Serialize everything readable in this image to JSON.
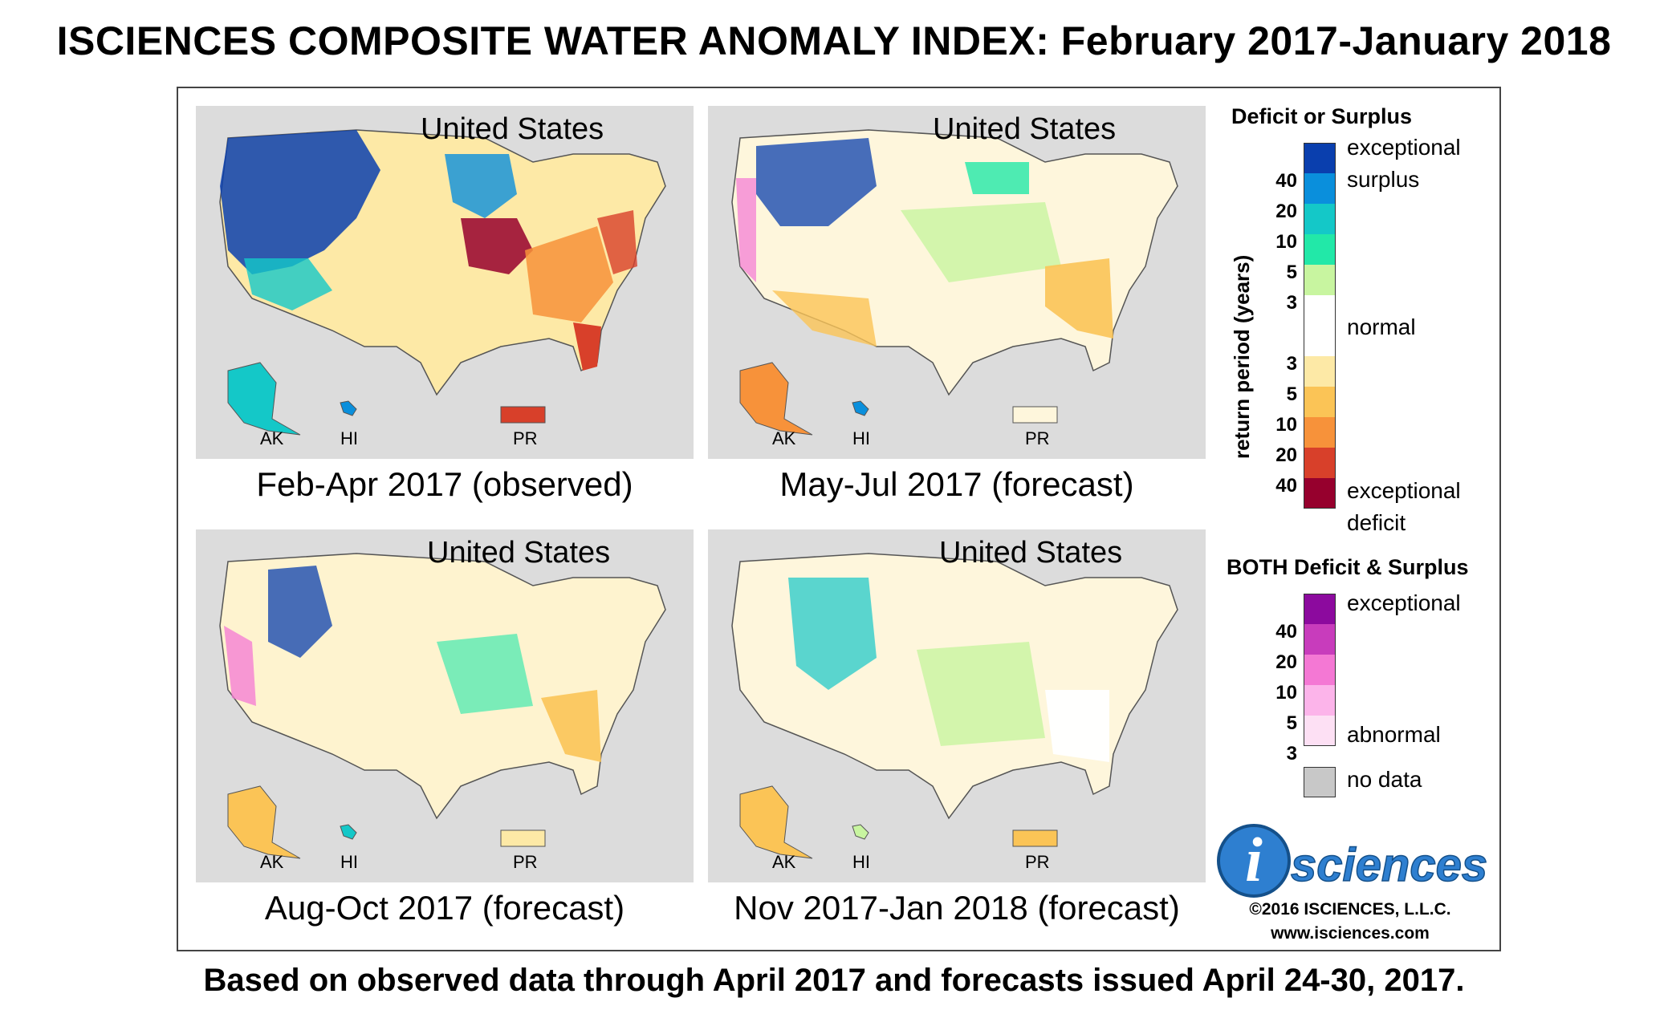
{
  "title": "ISCIENCES COMPOSITE WATER ANOMALY INDEX: February 2017-January 2018",
  "footer": "Based on observed data through April 2017 and forecasts issued April 24-30, 2017.",
  "panels": [
    {
      "region": "United States",
      "caption": "Feb-Apr 2017 (observed)",
      "ak": "AK",
      "hi": "HI",
      "pr": "PR"
    },
    {
      "region": "United States",
      "caption": "May-Jul 2017 (forecast)",
      "ak": "AK",
      "hi": "HI",
      "pr": "PR"
    },
    {
      "region": "United States",
      "caption": "Aug-Oct 2017 (forecast)",
      "ak": "AK",
      "hi": "HI",
      "pr": "PR"
    },
    {
      "region": "United States",
      "caption": "Nov 2017-Jan 2018 (forecast)",
      "ak": "AK",
      "hi": "HI",
      "pr": "PR"
    }
  ],
  "legend": {
    "heading1": "Deficit or Surplus",
    "axis_label": "return period (years)",
    "surplus_ticks": [
      "40",
      "20",
      "10",
      "5",
      "3"
    ],
    "deficit_ticks": [
      "3",
      "5",
      "10",
      "20",
      "40"
    ],
    "surplus_colors": [
      "#0a3fae",
      "#0a8fdc",
      "#14c8c8",
      "#22e8a8",
      "#c8f5a0"
    ],
    "normal_color": "#ffffff",
    "deficit_colors": [
      "#fde9a6",
      "#fbc456",
      "#f7923a",
      "#d8402a",
      "#96002d"
    ],
    "label_exceptional_surplus_1": "exceptional",
    "label_exceptional_surplus_2": "surplus",
    "label_normal": "normal",
    "label_exceptional_deficit_1": "exceptional",
    "label_exceptional_deficit_2": "deficit",
    "heading2": "BOTH Deficit & Surplus",
    "both_ticks": [
      "40",
      "20",
      "10",
      "5",
      "3"
    ],
    "both_colors": [
      "#8c0a9e",
      "#c83cbc",
      "#f478d4",
      "#fcb4ea",
      "#fde0f4"
    ],
    "label_both_exceptional": "exceptional",
    "label_both_abnormal": "abnormal",
    "nodata_color": "#c8c8c8",
    "label_nodata": "no data"
  },
  "logo": {
    "letter": "i",
    "word": "sciences"
  },
  "copyright": "©2016 ISCIENCES, L.L.C.",
  "website": "www.isciences.com"
}
